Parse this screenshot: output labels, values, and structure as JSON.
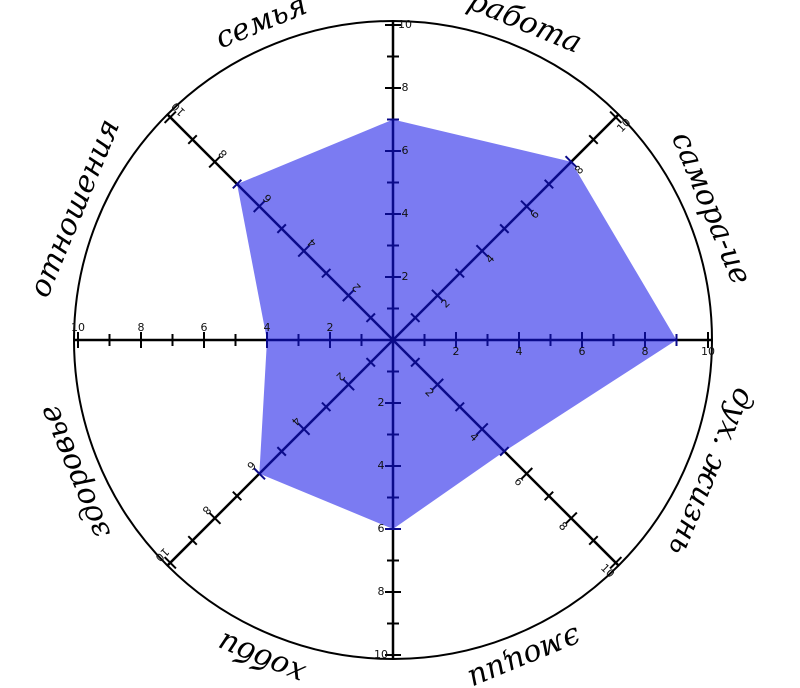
{
  "chart_data": {
    "type": "radar",
    "categories": [
      "работа",
      "самора-ие",
      "дух. жизнь",
      "эмоции",
      "хобби",
      "здоровье",
      "отношения",
      "семья"
    ],
    "values": [
      7,
      8,
      9,
      5,
      6,
      6,
      4,
      7
    ],
    "color": "#7b7bf2",
    "rlim": [
      0,
      10
    ],
    "rticks": [
      2,
      4,
      6,
      8,
      10
    ],
    "rminor": [
      1,
      3,
      5,
      7,
      9
    ]
  }
}
